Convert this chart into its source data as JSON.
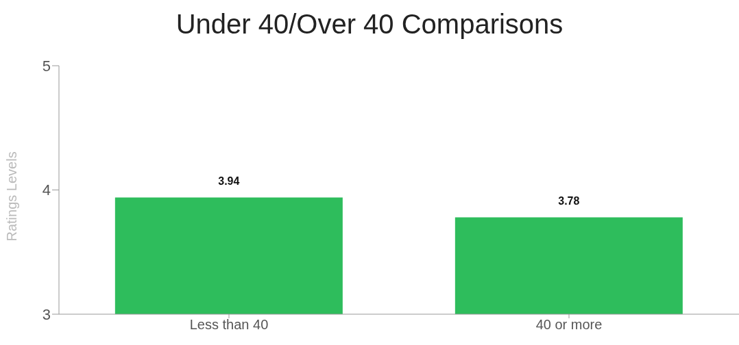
{
  "chart_data": {
    "type": "bar",
    "title": "Under 40/Over 40 Comparisons",
    "ylabel": "Ratings Levels",
    "categories": [
      "Less than 40",
      "40 or more"
    ],
    "values": [
      3.94,
      3.78
    ],
    "color": "#2ebd5c",
    "ylim": [
      3,
      5
    ],
    "yticks": [
      3,
      4,
      5
    ],
    "grid": false,
    "data_labels": true,
    "legend": false
  }
}
